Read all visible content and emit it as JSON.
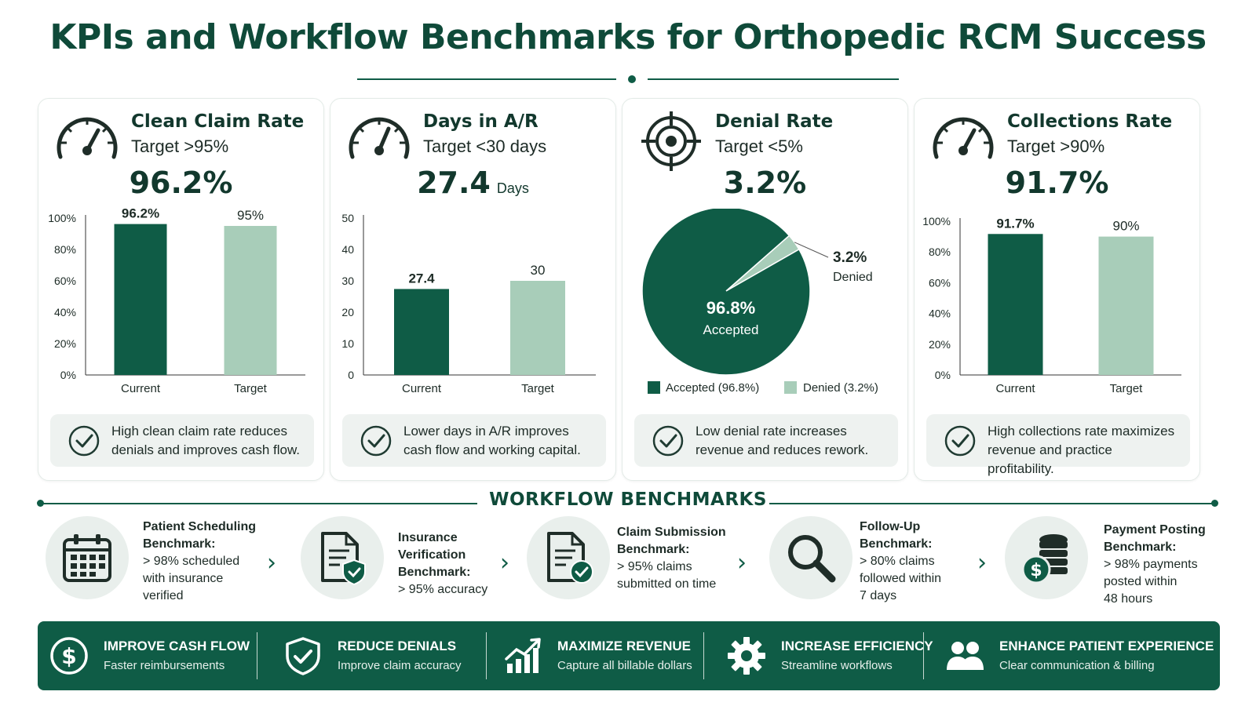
{
  "title": "KPIs and Workflow Benchmarks for Orthopedic RCM Success",
  "colors": {
    "primary": "#0f5c46",
    "secondary": "#a8cdb9",
    "note_bg": "#eef2f0",
    "circle_bg": "#e9efec"
  },
  "kpis": [
    {
      "icon": "speedometer-icon",
      "title": "Clean Claim Rate",
      "target": "Target >95%",
      "value": "96.2%",
      "unit": "",
      "note": [
        "High clean claim rate reduces",
        "denials and improves cash flow."
      ]
    },
    {
      "icon": "speedometer-icon",
      "title": "Days in A/R",
      "target": "Target <30 days",
      "value": "27.4",
      "unit": "Days",
      "note": [
        "Lower days in A/R improves",
        "cash flow and working capital."
      ]
    },
    {
      "icon": "target-icon",
      "title": "Denial Rate",
      "target": "Target <5%",
      "value": "3.2%",
      "unit": "",
      "note": [
        "Low denial rate increases",
        "revenue and reduces rework."
      ]
    },
    {
      "icon": "speedometer-icon",
      "title": "Collections Rate",
      "target": "Target >90%",
      "value": "91.7%",
      "unit": "",
      "note": [
        "High collections rate maximizes",
        "revenue and practice profitability."
      ]
    }
  ],
  "chart_data": [
    {
      "type": "bar",
      "categories": [
        "Current",
        "Target"
      ],
      "values": [
        96.2,
        95
      ],
      "value_labels": [
        "96.2%",
        "95%"
      ],
      "ylim": [
        0,
        100
      ],
      "yticks": [
        "0%",
        "20%",
        "40%",
        "60%",
        "80%",
        "100%"
      ],
      "ytick_values": [
        0,
        20,
        40,
        60,
        80,
        100
      ]
    },
    {
      "type": "bar",
      "categories": [
        "Current",
        "Target"
      ],
      "values": [
        27.4,
        30
      ],
      "value_labels": [
        "27.4",
        "30"
      ],
      "ylim": [
        0,
        50
      ],
      "yticks": [
        "0",
        "10",
        "20",
        "30",
        "40",
        "50"
      ],
      "ytick_values": [
        0,
        10,
        20,
        30,
        40,
        50
      ]
    },
    {
      "type": "pie",
      "slices": [
        {
          "label": "Accepted",
          "value": 96.8,
          "value_label": "96.8%",
          "legend": "Accepted (96.8%)"
        },
        {
          "label": "Denied",
          "value": 3.2,
          "value_label": "3.2%",
          "legend": "Denied (3.2%)"
        }
      ]
    },
    {
      "type": "bar",
      "categories": [
        "Current",
        "Target"
      ],
      "values": [
        91.7,
        90
      ],
      "value_labels": [
        "91.7%",
        "90%"
      ],
      "ylim": [
        0,
        100
      ],
      "yticks": [
        "0%",
        "20%",
        "40%",
        "60%",
        "80%",
        "100%"
      ],
      "ytick_values": [
        0,
        20,
        40,
        60,
        80,
        100
      ]
    }
  ],
  "workflow": {
    "heading": "WORKFLOW BENCHMARKS",
    "steps": [
      {
        "icon": "calendar-icon",
        "lines": [
          "Patient Scheduling",
          "Benchmark:",
          "> 98% scheduled",
          "with insurance",
          "verified"
        ]
      },
      {
        "icon": "document-shield-icon",
        "lines": [
          "Insurance",
          "Verification",
          "Benchmark:",
          "> 95% accuracy"
        ]
      },
      {
        "icon": "document-check-icon",
        "lines": [
          "Claim Submission",
          "Benchmark:",
          "> 95% claims",
          "submitted on time"
        ]
      },
      {
        "icon": "magnifier-icon",
        "lines": [
          "Follow-Up",
          "Benchmark:",
          "> 80% claims",
          "followed within",
          "7 days"
        ]
      },
      {
        "icon": "coins-icon",
        "lines": [
          "Payment Posting",
          "Benchmark:",
          "> 98% payments",
          "posted within",
          "48 hours"
        ]
      }
    ]
  },
  "benefits": [
    {
      "icon": "dollar-circle-icon",
      "title": "IMPROVE CASH FLOW",
      "subtitle": "Faster reimbursements"
    },
    {
      "icon": "shield-check-icon",
      "title": "REDUCE DENIALS",
      "subtitle": "Improve claim accuracy"
    },
    {
      "icon": "growth-chart-icon",
      "title": "MAXIMIZE REVENUE",
      "subtitle": "Capture all billable dollars"
    },
    {
      "icon": "gear-icon",
      "title": "INCREASE EFFICIENCY",
      "subtitle": "Streamline workflows"
    },
    {
      "icon": "people-icon",
      "title": "ENHANCE PATIENT EXPERIENCE",
      "subtitle": "Clear communication & billing"
    }
  ]
}
